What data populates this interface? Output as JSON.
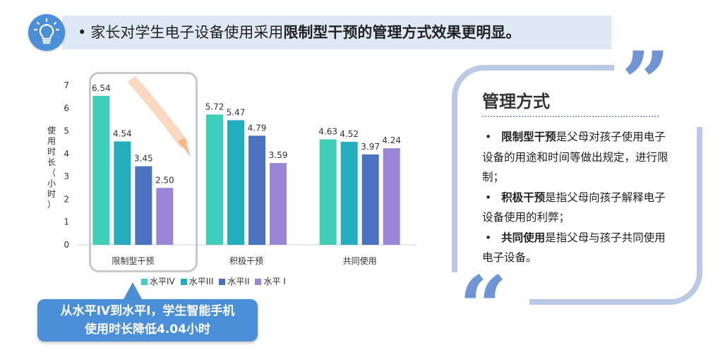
{
  "headline": {
    "bullet": "•",
    "prefix": "家长对学生电子设备使用采用",
    "emphasis": "限制型干预的管理方式效果更明显。"
  },
  "colors": {
    "header_band": "#dfe9f6",
    "accent_blue": "#4a8fd8",
    "quote": "#6f95d6",
    "frame": "#b9c9e6"
  },
  "chart_data": {
    "type": "bar",
    "ylabel_chars": [
      "使",
      "用",
      "时",
      "长",
      "（",
      "小",
      "时",
      "）"
    ],
    "ylim": [
      0,
      7
    ],
    "yticks": [
      0,
      1,
      2,
      3,
      4,
      5,
      6,
      7
    ],
    "grid": false,
    "legend_position": "bottom",
    "categories": [
      "限制型干预",
      "积极干预",
      "共同使用"
    ],
    "series": [
      {
        "name": "水平IV",
        "color": "#3fcfb8",
        "values": [
          6.54,
          5.72,
          4.63
        ]
      },
      {
        "name": "水平III",
        "color": "#22aebc",
        "values": [
          4.54,
          5.47,
          4.52
        ]
      },
      {
        "name": "水平II",
        "color": "#4a72bf",
        "values": [
          3.45,
          4.79,
          3.97
        ]
      },
      {
        "name": "水平 I",
        "color": "#9b85d6",
        "values": [
          2.5,
          3.59,
          4.24
        ]
      }
    ],
    "labels": [
      [
        "6.54",
        "5.72",
        "4.63"
      ],
      [
        "4.54",
        "5.47",
        "4.52"
      ],
      [
        "3.45",
        "4.79",
        "3.97"
      ],
      [
        "2.50",
        "3.59",
        "4.24"
      ]
    ]
  },
  "callout": {
    "line1": "从水平IV到水平I，学生智能手机",
    "line2": "使用时长降低4.04小时"
  },
  "panel": {
    "title": "管理方式",
    "items": [
      {
        "bullet": "•",
        "term": "限制型干预",
        "text": "是父母对孩子使用电子设备的用途和时间等做出规定，进行限制；"
      },
      {
        "bullet": "•",
        "term": "积极干预",
        "text": "是指父母向孩子解释电子设备使用的利弊；"
      },
      {
        "bullet": "•",
        "term": "共同使用",
        "text": "是指父母与孩子共同使用电子设备。"
      }
    ],
    "quote_open": "“",
    "quote_close": "”"
  }
}
